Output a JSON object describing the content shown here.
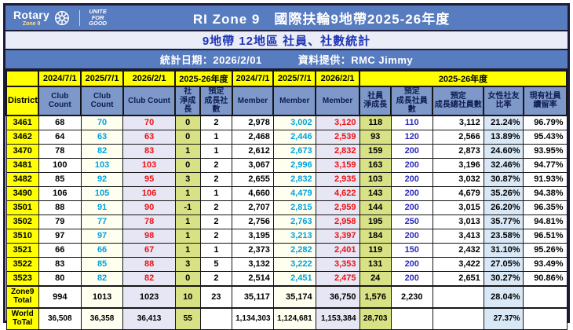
{
  "header": {
    "brand": "Rotary",
    "brand_sub": "Zone 9",
    "tagline": "UNITE\nFOR\nGOOD",
    "title": "RI Zone 9　國際扶輪9地帶2025-26年度",
    "subtitle": "9地帶 12地區 社員、社數統計",
    "stat_date": "統計日期：2026/2/01",
    "provider": "資料提供：RMC Jimmy"
  },
  "colors": {
    "banner_blue": "#587cc0",
    "subtitle_text_blue": "#1f35b5",
    "header_cell_blue": "#7e98ca",
    "yellow": "#ffff00",
    "ivory_2025_col": "#fffff0",
    "lavender_2026_col": "#e6e6f4",
    "green_net_growth_col": "#d8e184",
    "lightblue_percent_col": "#d9e8f6",
    "cyan_text": "#00a2e0",
    "red_text": "#ee1111",
    "blue_text": "#2b2bbb",
    "total_label_red": "#dd0000",
    "frame_navy": "#1c1c38"
  },
  "table": {
    "group_headers": [
      {
        "label": "",
        "span": 1
      },
      {
        "label": "2024/7/1",
        "span": 1
      },
      {
        "label": "2025/7/1",
        "span": 1
      },
      {
        "label": "2026/2/1",
        "span": 1
      },
      {
        "label": "2025-26年度",
        "span": 2
      },
      {
        "label": "2024/7/1",
        "span": 1
      },
      {
        "label": "2025/7/1",
        "span": 1
      },
      {
        "label": "2026/2/1",
        "span": 1
      },
      {
        "label": "2025-26年度",
        "span": 5
      }
    ],
    "column_headers": [
      "District",
      "Club Count",
      "Club Count",
      "Club Count",
      "社\n淨成長",
      "預定\n成長社數",
      "Member",
      "Member",
      "Member",
      "社員\n淨成長",
      "預定\n成長社員數",
      "預定\n成長總社員數",
      "女性社友\n比率",
      "現有社員\n續留率"
    ],
    "rows": [
      {
        "district": "3461",
        "values": [
          "68",
          "70",
          "70",
          "0",
          "2",
          "2,978",
          "3,002",
          "3,120",
          "118",
          "110",
          "3,112",
          "21.24%",
          "96.79%"
        ]
      },
      {
        "district": "3462",
        "values": [
          "64",
          "63",
          "63",
          "0",
          "1",
          "2,468",
          "2,446",
          "2,539",
          "93",
          "120",
          "2,566",
          "13.89%",
          "95.43%"
        ]
      },
      {
        "district": "3470",
        "values": [
          "78",
          "82",
          "83",
          "1",
          "1",
          "2,612",
          "2,673",
          "2,832",
          "159",
          "200",
          "2,873",
          "24.60%",
          "93.95%"
        ]
      },
      {
        "district": "3481",
        "values": [
          "100",
          "103",
          "103",
          "0",
          "2",
          "3,067",
          "2,996",
          "3,159",
          "163",
          "200",
          "3,196",
          "32.46%",
          "94.77%"
        ]
      },
      {
        "district": "3482",
        "values": [
          "85",
          "92",
          "95",
          "3",
          "2",
          "2,655",
          "2,832",
          "2,935",
          "103",
          "200",
          "3,032",
          "30.87%",
          "91.93%"
        ]
      },
      {
        "district": "3490",
        "values": [
          "106",
          "105",
          "106",
          "1",
          "1",
          "4,660",
          "4,479",
          "4,622",
          "143",
          "200",
          "4,679",
          "35.26%",
          "94.38%"
        ]
      },
      {
        "district": "3501",
        "values": [
          "88",
          "91",
          "90",
          "-1",
          "2",
          "2,707",
          "2,815",
          "2,959",
          "144",
          "200",
          "3,015",
          "26.20%",
          "96.35%"
        ]
      },
      {
        "district": "3502",
        "values": [
          "79",
          "77",
          "78",
          "1",
          "2",
          "2,756",
          "2,763",
          "2,958",
          "195",
          "250",
          "3,013",
          "35.77%",
          "94.81%"
        ]
      },
      {
        "district": "3510",
        "values": [
          "97",
          "97",
          "98",
          "1",
          "2",
          "3,195",
          "3,213",
          "3,397",
          "184",
          "200",
          "3,413",
          "23.58%",
          "96.51%"
        ]
      },
      {
        "district": "3521",
        "values": [
          "66",
          "66",
          "67",
          "1",
          "1",
          "2,373",
          "2,282",
          "2,401",
          "119",
          "150",
          "2,432",
          "31.10%",
          "95.26%"
        ]
      },
      {
        "district": "3522",
        "values": [
          "83",
          "85",
          "88",
          "3",
          "5",
          "3,132",
          "3,222",
          "3,353",
          "131",
          "200",
          "3,422",
          "27.05%",
          "93.49%"
        ]
      },
      {
        "district": "3523",
        "values": [
          "80",
          "82",
          "82",
          "0",
          "2",
          "2,514",
          "2,451",
          "2,475",
          "24",
          "200",
          "2,651",
          "30.27%",
          "90.86%"
        ]
      }
    ],
    "totals": [
      {
        "key": "zone9",
        "label": "Zone9\nTotal",
        "values": [
          "994",
          "1013",
          "1023",
          "10",
          "23",
          "35,117",
          "35,174",
          "36,750",
          "1,576",
          "2,230",
          "",
          "28.04%",
          ""
        ]
      },
      {
        "key": "world",
        "label": "World\nToTal",
        "values": [
          "36,508",
          "36,358",
          "36,413",
          "55",
          "",
          "1,134,303",
          "1,124,681",
          "1,153,384",
          "28,703",
          "",
          "",
          "27.37%",
          ""
        ]
      }
    ]
  }
}
